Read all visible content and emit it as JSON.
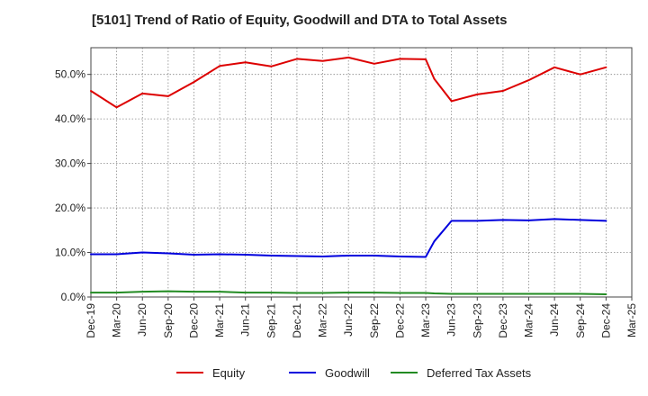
{
  "chart_data": {
    "type": "line",
    "title": "[5101]  Trend of Ratio of Equity, Goodwill and DTA to Total Assets",
    "xlabel": "",
    "ylabel": "",
    "ylim": [
      0,
      56
    ],
    "y_ticks": [
      0,
      10,
      20,
      30,
      40,
      50
    ],
    "y_tick_labels": [
      "0.0%",
      "10.0%",
      "20.0%",
      "30.0%",
      "40.0%",
      "50.0%"
    ],
    "x_tick_labels": [
      "Dec-19",
      "Mar-20",
      "Jun-20",
      "Sep-20",
      "Dec-20",
      "Mar-21",
      "Jun-21",
      "Sep-21",
      "Dec-21",
      "Mar-22",
      "Jun-22",
      "Sep-22",
      "Dec-22",
      "Mar-23",
      "Jun-23",
      "Sep-23",
      "Dec-23",
      "Mar-24",
      "Jun-24",
      "Sep-24",
      "Dec-24",
      "Mar-25"
    ],
    "categories": [
      "Dec-19",
      "Mar-20",
      "Jun-20",
      "Sep-20",
      "Dec-20",
      "Mar-21",
      "Jun-21",
      "Sep-21",
      "Dec-21",
      "Mar-22",
      "Jun-22",
      "Sep-22",
      "Dec-22",
      "Mar-23",
      "Apr-23",
      "Jun-23",
      "Sep-23",
      "Dec-23",
      "Mar-24",
      "Jun-24",
      "Sep-24",
      "Dec-24"
    ],
    "x_positions": [
      0,
      1,
      2,
      3,
      4,
      5,
      6,
      7,
      8,
      9,
      10,
      11,
      12,
      13,
      13.33,
      14,
      15,
      16,
      17,
      18,
      19,
      20
    ],
    "x_max": 21,
    "grid": true,
    "legend_position": "bottom",
    "series": [
      {
        "name": "Equity",
        "color": "#dd0000",
        "values": [
          46.3,
          42.6,
          45.7,
          45.1,
          48.3,
          51.9,
          52.7,
          51.8,
          53.5,
          53.0,
          53.8,
          52.4,
          53.5,
          53.4,
          49.0,
          44.0,
          45.5,
          46.3,
          48.7,
          51.6,
          50.0,
          51.6
        ]
      },
      {
        "name": "Goodwill",
        "color": "#0000dd",
        "values": [
          9.6,
          9.6,
          10.0,
          9.8,
          9.5,
          9.6,
          9.5,
          9.3,
          9.2,
          9.1,
          9.3,
          9.3,
          9.1,
          9.0,
          12.5,
          17.1,
          17.1,
          17.3,
          17.2,
          17.5,
          17.3,
          17.1
        ]
      },
      {
        "name": "Deferred Tax Assets",
        "color": "#228b22",
        "values": [
          1.0,
          1.0,
          1.2,
          1.3,
          1.2,
          1.2,
          1.0,
          1.0,
          0.9,
          0.9,
          1.0,
          1.0,
          0.9,
          0.9,
          0.8,
          0.7,
          0.7,
          0.7,
          0.7,
          0.7,
          0.7,
          0.6
        ]
      }
    ]
  }
}
